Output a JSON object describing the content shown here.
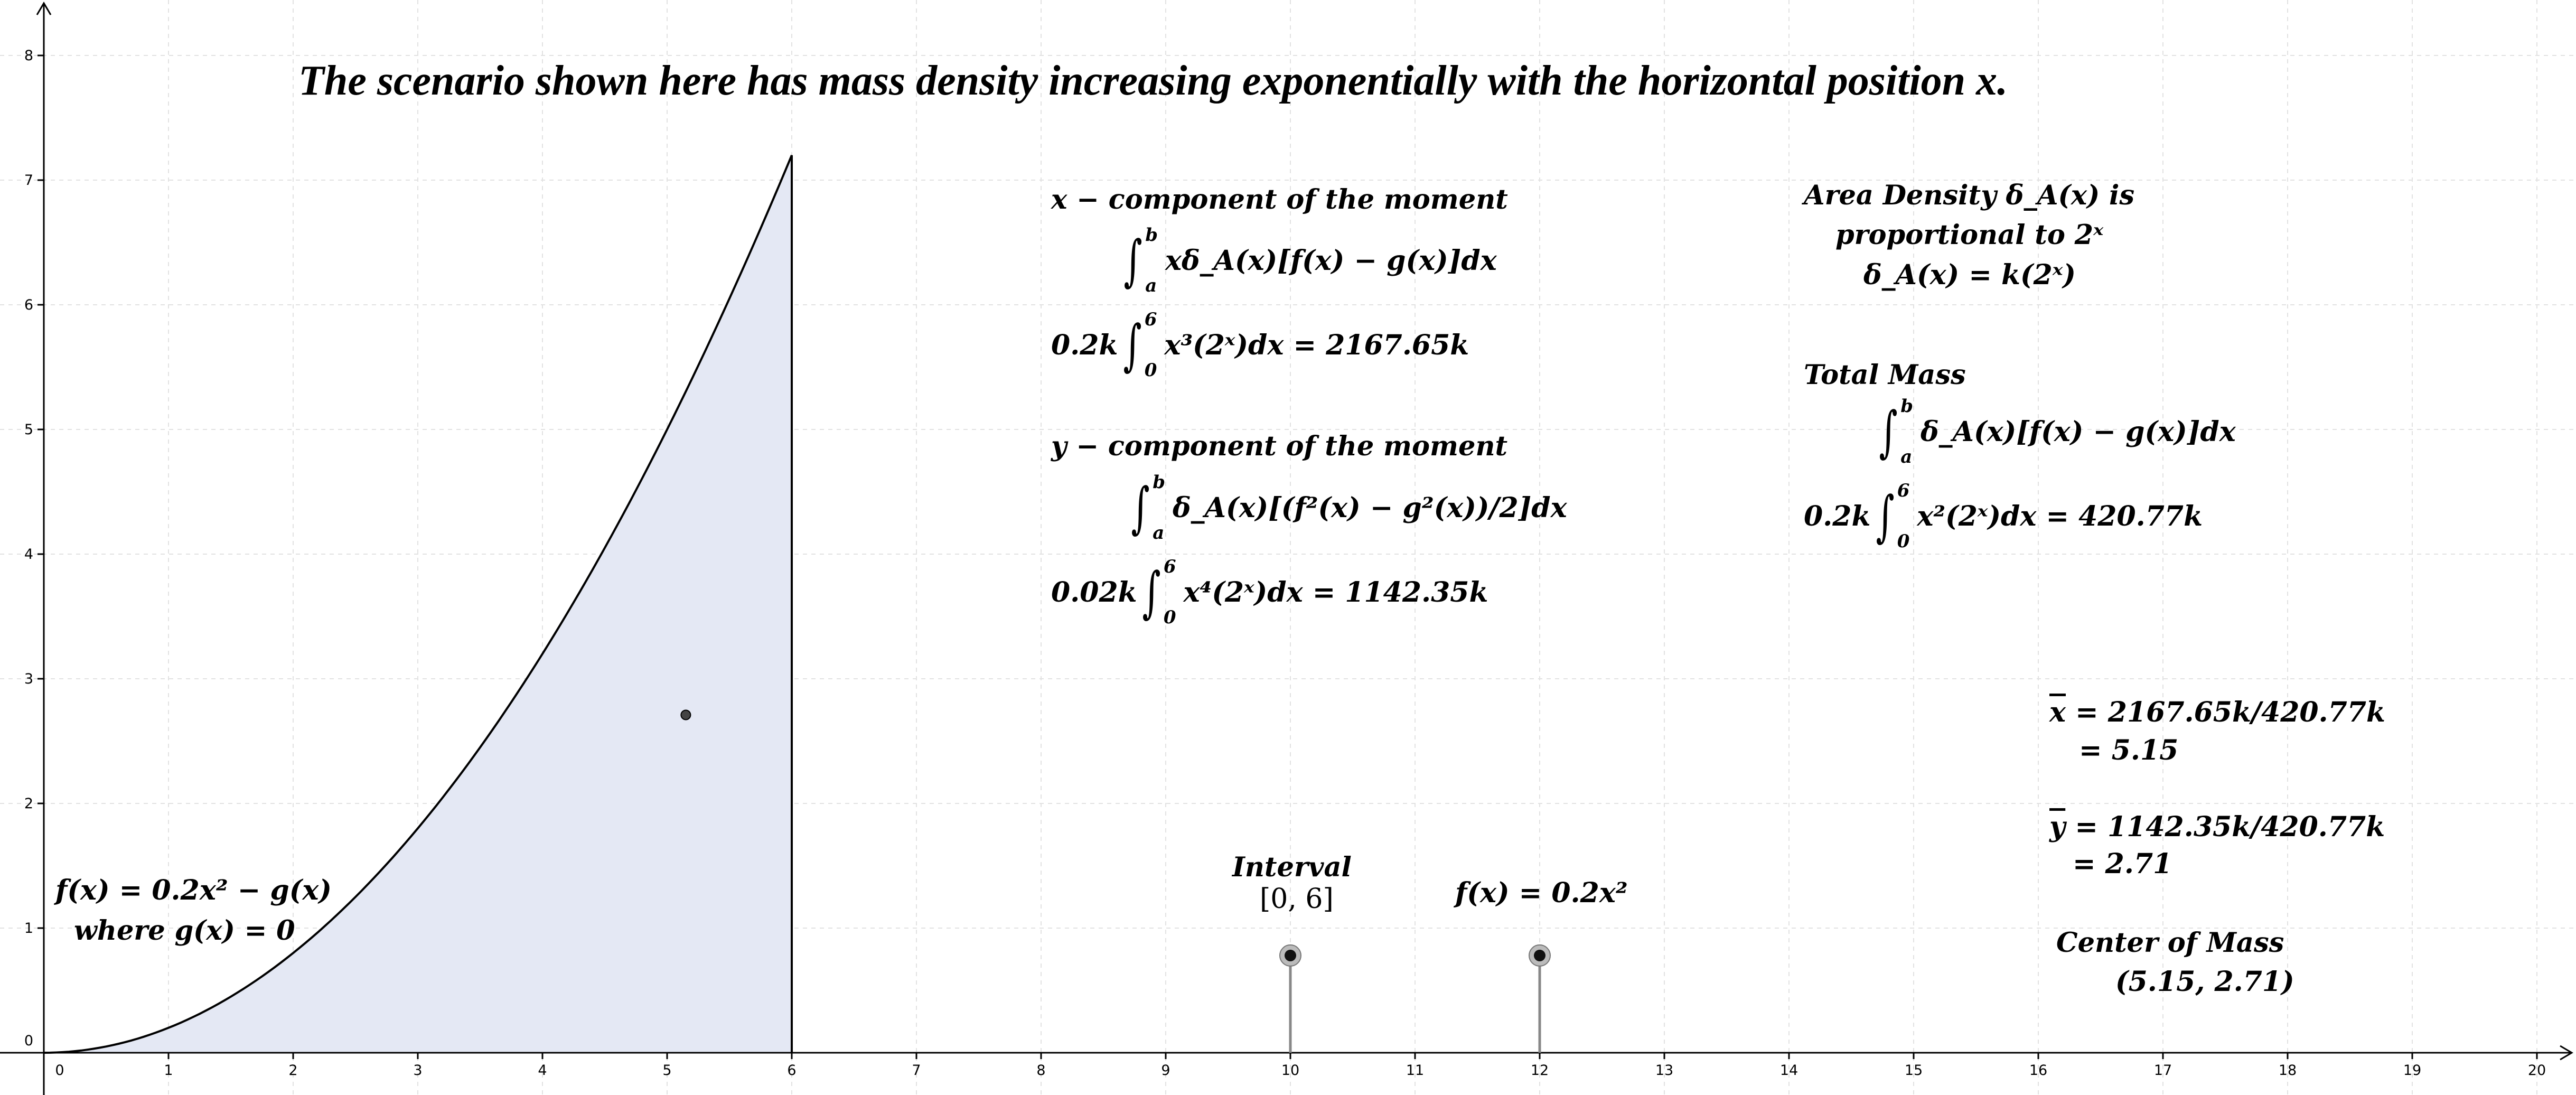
{
  "headline": "The scenario shown here has mass density increasing exponentially with the horizontal position  x.",
  "axes": {
    "x_ticks": [
      "0",
      "1",
      "2",
      "3",
      "4",
      "5",
      "6",
      "7",
      "8",
      "9",
      "10",
      "11",
      "12",
      "13",
      "14",
      "15",
      "16",
      "17",
      "18",
      "19",
      "20"
    ],
    "y_ticks": [
      "0",
      "1",
      "2",
      "3",
      "4",
      "5",
      "6",
      "7",
      "8"
    ],
    "x_range": [
      -0.1,
      20.6
    ],
    "y_range": [
      -0.1,
      8.4
    ],
    "grid": true
  },
  "region": {
    "function": "0.2x^2",
    "interval": [
      0,
      6
    ],
    "fill_color": "#e4e8f4",
    "curve_color": "#000000"
  },
  "center_point": {
    "x": 5.15,
    "y": 2.71
  },
  "slider_points": [
    {
      "x": 10,
      "y": 0.78
    },
    {
      "x": 12,
      "y": 0.78
    }
  ],
  "x_moment": {
    "title": "x − component of the moment",
    "general_integrand": "xδ_A(x)[f(x) − g(x)]dx",
    "general_upper": "b",
    "general_lower": "a",
    "coef": "0.2k",
    "integrand": "x³(2ˣ)dx =",
    "upper": "6",
    "lower": "0",
    "result": "2167.65k"
  },
  "y_moment": {
    "title": "y − component of the moment",
    "general_integrand": "δ_A(x)[(f²(x) − g²(x))/2]dx",
    "general_upper": "b",
    "general_lower": "a",
    "coef": "0.02k",
    "integrand": "x⁴(2ˣ)dx =",
    "upper": "6",
    "lower": "0",
    "result": "1142.35k"
  },
  "density": {
    "line1": "Area Density δ_A(x) is",
    "line2": "proportional to 2ˣ",
    "line3": "δ_A(x) = k(2ˣ)"
  },
  "total_mass": {
    "title": "Total Mass",
    "general_integrand": "δ_A(x)[f(x) − g(x)]dx",
    "general_upper": "b",
    "general_lower": "a",
    "coef": "0.2k",
    "integrand": "x²(2ˣ)dx  =",
    "upper": "6",
    "lower": "0",
    "result": "420.77k"
  },
  "xbar": {
    "symbol": "x",
    "expr": "= 2167.65k/420.77k",
    "value": "= 5.15"
  },
  "ybar": {
    "symbol": "y",
    "expr": "= 1142.35k/420.77k",
    "value": "= 2.71"
  },
  "center_of_mass": {
    "title": "Center of Mass",
    "value": "(5.15, 2.71)"
  },
  "fx_label": {
    "line1": "f(x) = 0.2x² − g(x)",
    "line2": "where g(x) = 0"
  },
  "interval_label": {
    "title": "Interval",
    "value": "[0, 6]"
  },
  "fx_simple": "f(x) = 0.2x²"
}
